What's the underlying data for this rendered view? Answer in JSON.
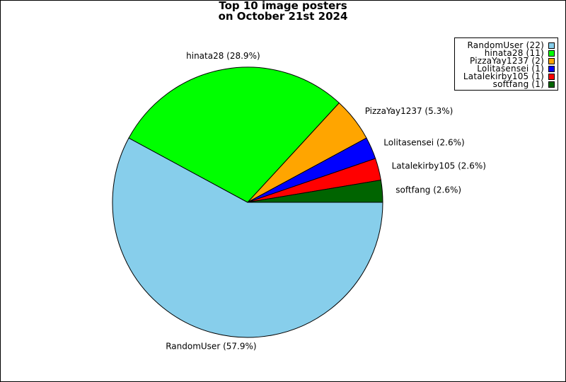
{
  "title_line1": "Top 10 image posters",
  "title_line2": "on October 21st 2024",
  "chart_data": {
    "type": "pie",
    "title": "Top 10 image posters on October 21st 2024",
    "start_angle_deg": 0,
    "direction": "clockwise",
    "legend_position": "top-right",
    "slices": [
      {
        "label": "RandomUser",
        "count": 22,
        "percent": "57.9%",
        "color": "#87ceeb",
        "slice_label": "RandomUser (57.9%)",
        "legend_label": "RandomUser (22)"
      },
      {
        "label": "hinata28",
        "count": 11,
        "percent": "28.9%",
        "color": "#00ff00",
        "slice_label": "hinata28 (28.9%)",
        "legend_label": "hinata28 (11)"
      },
      {
        "label": "PizzaYay1237",
        "count": 2,
        "percent": "5.3%",
        "color": "#ffa500",
        "slice_label": "PizzaYay1237 (5.3%)",
        "legend_label": "PizzaYay1237 (2)"
      },
      {
        "label": "Lolitasensei",
        "count": 1,
        "percent": "2.6%",
        "color": "#0000ff",
        "slice_label": "Lolitasensei (2.6%)",
        "legend_label": "Lolitasensei (1)"
      },
      {
        "label": "Latalekirby105",
        "count": 1,
        "percent": "2.6%",
        "color": "#ff0000",
        "slice_label": "Latalekirby105 (2.6%)",
        "legend_label": "Latalekirby105 (1)"
      },
      {
        "label": "softfang",
        "count": 1,
        "percent": "2.6%",
        "color": "#006400",
        "slice_label": "softfang (2.6%)",
        "legend_label": "softfang (1)"
      }
    ]
  }
}
